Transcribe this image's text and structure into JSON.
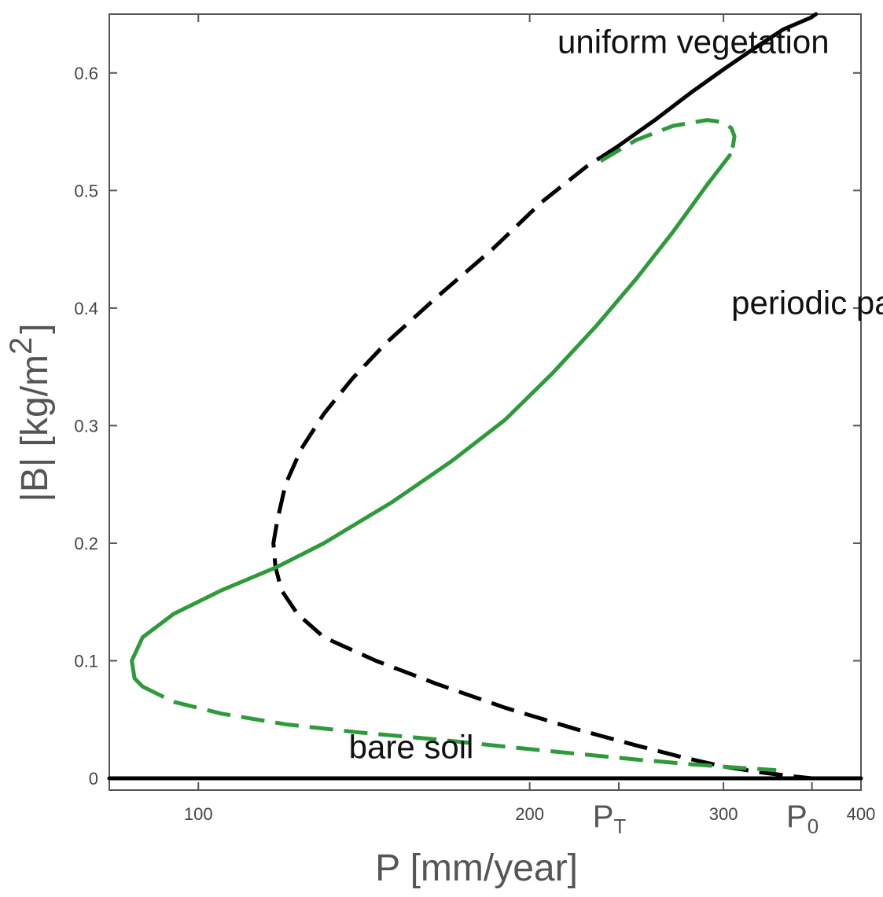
{
  "chart_data": {
    "type": "line",
    "xlabel": "P [mm/year]",
    "ylabel_main": "|B| [kg/m",
    "ylabel_sup": "2",
    "ylabel_close": "]",
    "xlim": [
      83,
      400
    ],
    "ylim": [
      -0.01,
      0.65
    ],
    "yticks": [
      0,
      0.1,
      0.2,
      0.3,
      0.4,
      0.5,
      0.6
    ],
    "ytick_labels": [
      "0",
      "0.1",
      "0.2",
      "0.3",
      "0.4",
      "0.5",
      "0.6"
    ],
    "xticks": [
      100,
      200,
      300,
      400
    ],
    "xtick_labels": [
      "100",
      "200",
      "300",
      "400"
    ],
    "special_ticks": [
      {
        "x": 241,
        "main": "P",
        "sub": "T"
      },
      {
        "x": 361,
        "main": "P",
        "sub": "0"
      }
    ],
    "annotations": [
      {
        "text": "uniform vegetation",
        "x": 212,
        "y": 0.617
      },
      {
        "text": "periodic pattern",
        "x": 305,
        "y": 0.395
      },
      {
        "text": "bare soil",
        "x": 137,
        "y": 0.017
      }
    ],
    "colors": {
      "black": "#000000",
      "green": "#2e9a3c",
      "frame": "#555555"
    },
    "series": [
      {
        "style": "solid",
        "color": "#000000",
        "x": [
          83,
          361,
          400
        ],
        "y": [
          0,
          0,
          0
        ]
      },
      {
        "style": "dashed",
        "color": "#000000",
        "x": [
          361,
          370,
          385,
          400
        ],
        "y": [
          0,
          0,
          0,
          0
        ]
      },
      {
        "style": "solid",
        "color": "#000000",
        "x": [
          240,
          260,
          280,
          300,
          320,
          340,
          360,
          364
        ],
        "y": [
          0.537,
          0.56,
          0.583,
          0.603,
          0.621,
          0.637,
          0.647,
          0.65
        ]
      },
      {
        "style": "dashed",
        "color": "#000000",
        "x": [
          240,
          225,
          205,
          185,
          165,
          148,
          138,
          130,
          124,
          120,
          118,
          117,
          117.5,
          119,
          123,
          130,
          145,
          165,
          190,
          220,
          250,
          275,
          300,
          325,
          345,
          361
        ],
        "y": [
          0.537,
          0.52,
          0.49,
          0.45,
          0.41,
          0.37,
          0.34,
          0.31,
          0.28,
          0.25,
          0.22,
          0.2,
          0.18,
          0.16,
          0.14,
          0.12,
          0.1,
          0.08,
          0.06,
          0.042,
          0.028,
          0.018,
          0.01,
          0.005,
          0.002,
          0
        ]
      },
      {
        "style": "dashed",
        "color": "#2e9a3c",
        "x": [
          232,
          250,
          270,
          290,
          300,
          305,
          307,
          306,
          304
        ],
        "y": [
          0.525,
          0.543,
          0.555,
          0.56,
          0.558,
          0.553,
          0.546,
          0.538,
          0.53
        ]
      },
      {
        "style": "solid",
        "color": "#2e9a3c",
        "x": [
          304,
          290,
          270,
          250,
          230,
          210,
          190,
          170,
          150,
          130,
          118,
          105,
          95,
          89,
          87,
          87.5,
          89
        ],
        "y": [
          0.53,
          0.505,
          0.465,
          0.425,
          0.385,
          0.345,
          0.305,
          0.27,
          0.235,
          0.2,
          0.18,
          0.16,
          0.14,
          0.12,
          0.1,
          0.085,
          0.078
        ]
      },
      {
        "style": "dashed",
        "color": "#2e9a3c",
        "x": [
          89,
          95,
          105,
          120,
          140,
          165,
          190,
          220,
          250,
          280,
          310,
          335
        ],
        "y": [
          0.078,
          0.065,
          0.055,
          0.046,
          0.039,
          0.033,
          0.027,
          0.021,
          0.016,
          0.012,
          0.009,
          0.007
        ]
      }
    ]
  }
}
